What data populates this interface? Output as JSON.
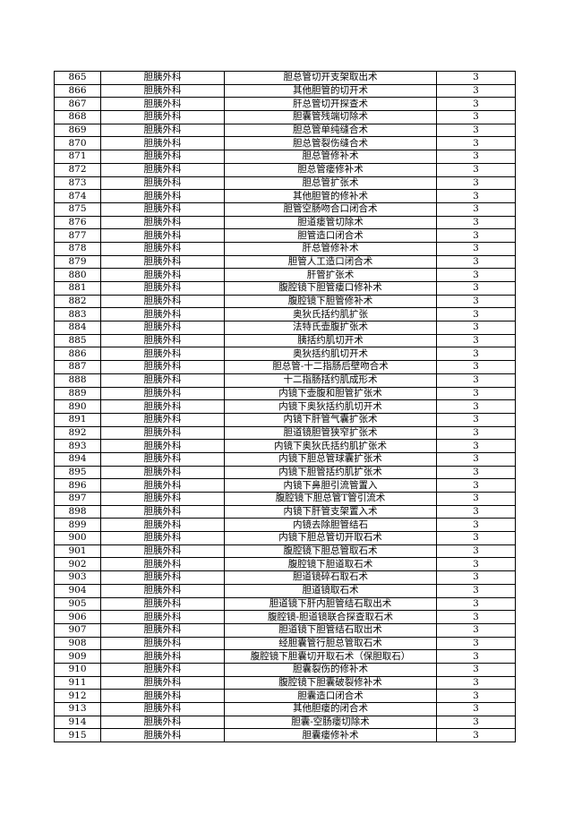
{
  "rows": [
    [
      "865",
      "胆胰外科",
      "胆总管切开支架取出术",
      "3"
    ],
    [
      "866",
      "胆胰外科",
      "其他胆管的切开术",
      "3"
    ],
    [
      "867",
      "胆胰外科",
      "肝总管切开探查术",
      "3"
    ],
    [
      "868",
      "胆胰外科",
      "胆囊管残端切除术",
      "3"
    ],
    [
      "869",
      "胆胰外科",
      "胆总管单纯缝合术",
      "3"
    ],
    [
      "870",
      "胆胰外科",
      "胆总管裂伤缝合术",
      "3"
    ],
    [
      "871",
      "胆胰外科",
      "胆总管修补术",
      "3"
    ],
    [
      "872",
      "胆胰外科",
      "胆总管瘘修补术",
      "3"
    ],
    [
      "873",
      "胆胰外科",
      "胆总管扩张术",
      "3"
    ],
    [
      "874",
      "胆胰外科",
      "其他胆管的修补术",
      "3"
    ],
    [
      "875",
      "胆胰外科",
      "胆管空肠吻合口闭合术",
      "3"
    ],
    [
      "876",
      "胆胰外科",
      "胆道瘘管切除术",
      "3"
    ],
    [
      "877",
      "胆胰外科",
      "胆管造口闭合术",
      "3"
    ],
    [
      "878",
      "胆胰外科",
      "肝总管修补术",
      "3"
    ],
    [
      "879",
      "胆胰外科",
      "胆管人工造口闭合术",
      "3"
    ],
    [
      "880",
      "胆胰外科",
      "肝管扩张术",
      "3"
    ],
    [
      "881",
      "胆胰外科",
      "腹腔镜下胆管瘘口修补术",
      "3"
    ],
    [
      "882",
      "胆胰外科",
      "腹腔镜下胆管修补术",
      "3"
    ],
    [
      "883",
      "胆胰外科",
      "奥狄氏括约肌扩张",
      "3"
    ],
    [
      "884",
      "胆胰外科",
      "法特氏壶腹扩张术",
      "3"
    ],
    [
      "885",
      "胆胰外科",
      "胰括约肌切开术",
      "3"
    ],
    [
      "886",
      "胆胰外科",
      "奥狄括约肌切开术",
      "3"
    ],
    [
      "887",
      "胆胰外科",
      "胆总管-十二指肠后壁吻合术",
      "3"
    ],
    [
      "888",
      "胆胰外科",
      "十二指肠括约肌成形术",
      "3"
    ],
    [
      "889",
      "胆胰外科",
      "内镜下壶腹和胆管扩张术",
      "3"
    ],
    [
      "890",
      "胆胰外科",
      "内镜下奥狄括约肌切开术",
      "3"
    ],
    [
      "891",
      "胆胰外科",
      "内镜下肝管气囊扩张术",
      "3"
    ],
    [
      "892",
      "胆胰外科",
      "胆道镜胆管狭窄扩张术",
      "3"
    ],
    [
      "893",
      "胆胰外科",
      "内镜下奥狄氏括约肌扩张术",
      "3"
    ],
    [
      "894",
      "胆胰外科",
      "内镜下胆总管球囊扩张术",
      "3"
    ],
    [
      "895",
      "胆胰外科",
      "内镜下胆管括约肌扩张术",
      "3"
    ],
    [
      "896",
      "胆胰外科",
      "内镜下鼻胆引流管置入",
      "3"
    ],
    [
      "897",
      "胆胰外科",
      "腹腔镜下胆总管T管引流术",
      "3"
    ],
    [
      "898",
      "胆胰外科",
      "内镜下肝管支架置入术",
      "3"
    ],
    [
      "899",
      "胆胰外科",
      "内镜去除胆管结石",
      "3"
    ],
    [
      "900",
      "胆胰外科",
      "内镜下胆总管切开取石术",
      "3"
    ],
    [
      "901",
      "胆胰外科",
      "腹腔镜下胆总管取石术",
      "3"
    ],
    [
      "902",
      "胆胰外科",
      "腹腔镜下胆道取石术",
      "3"
    ],
    [
      "903",
      "胆胰外科",
      "胆道镜碎石取石术",
      "3"
    ],
    [
      "904",
      "胆胰外科",
      "胆道镜取石术",
      "3"
    ],
    [
      "905",
      "胆胰外科",
      "胆道镜下肝内胆管结石取出术",
      "3"
    ],
    [
      "906",
      "胆胰外科",
      "腹腔镜-胆道镜联合探查取石术",
      "3"
    ],
    [
      "907",
      "胆胰外科",
      "胆道镜下胆管结石取出术",
      "3"
    ],
    [
      "908",
      "胆胰外科",
      "经胆囊管行胆总管取石术",
      "3"
    ],
    [
      "909",
      "胆胰外科",
      "腹腔镜下胆囊切开取石术（保胆取石）",
      "3"
    ],
    [
      "910",
      "胆胰外科",
      "胆囊裂伤的修补术",
      "3"
    ],
    [
      "911",
      "胆胰外科",
      "腹腔镜下胆囊破裂修补术",
      "3"
    ],
    [
      "912",
      "胆胰外科",
      "胆囊造口闭合术",
      "3"
    ],
    [
      "913",
      "胆胰外科",
      "其他胆瘘的闭合术",
      "3"
    ],
    [
      "914",
      "胆胰外科",
      "胆囊-空肠瘘切除术",
      "3"
    ],
    [
      "915",
      "胆胰外科",
      "胆囊瘘修补术",
      "3"
    ]
  ]
}
